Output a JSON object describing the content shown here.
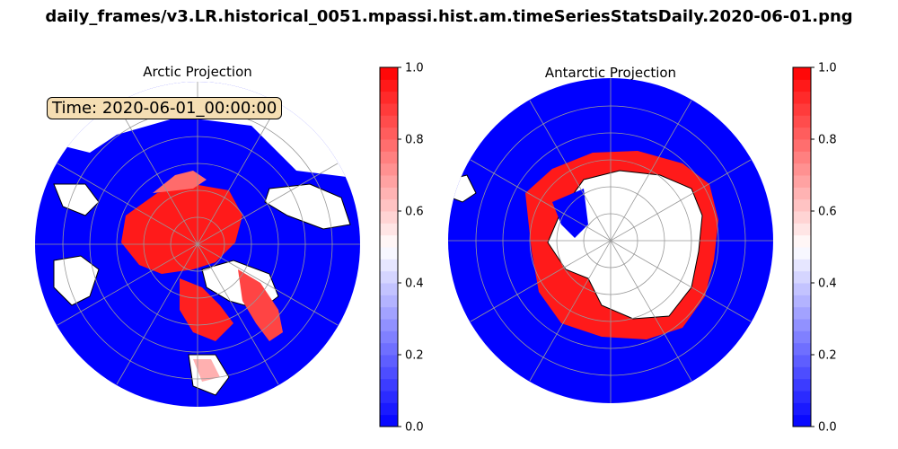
{
  "figure": {
    "suptitle": "daily_frames/v3.LR.historical_0051.mpassi.hist.am.timeSeriesStatsDaily.2020-06-01.png",
    "time_label": "Time: 2020-06-01_00:00:00"
  },
  "panels": [
    {
      "title": "Arctic Projection",
      "colorbar": {
        "ticks": [
          "0.0",
          "0.2",
          "0.4",
          "0.6",
          "0.8",
          "1.0"
        ],
        "vmin": 0.0,
        "vmax": 1.0
      }
    },
    {
      "title": "Antarctic Projection",
      "colorbar": {
        "ticks": [
          "0.0",
          "0.2",
          "0.4",
          "0.6",
          "0.8",
          "1.0"
        ],
        "vmin": 0.0,
        "vmax": 1.0
      }
    }
  ],
  "colors": {
    "ocean_low": "#0000ff",
    "ice_high": "#ff0000",
    "mid": "#ffffff",
    "land": "#ffffff",
    "coast": "#000000",
    "grid": "#999999",
    "label_box": "#f5deb3"
  },
  "colormap": "bwr",
  "colorbar_levels": 30
}
